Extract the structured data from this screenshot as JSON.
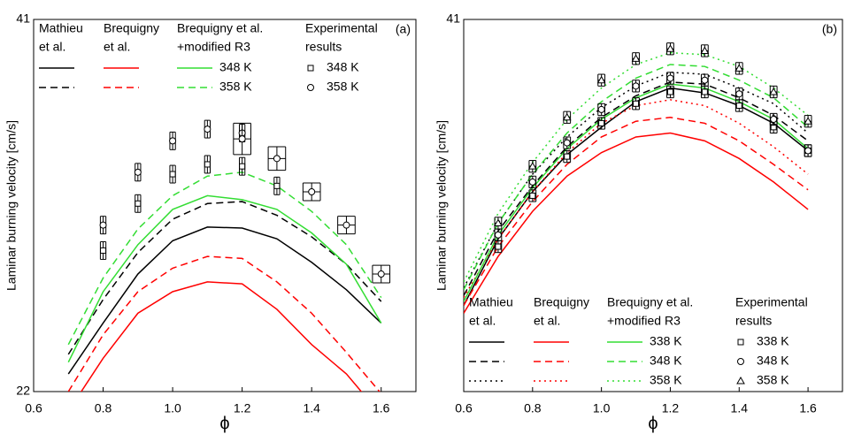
{
  "chart_data": [
    {
      "type": "line",
      "label": "(a)",
      "xlabel": "ϕ",
      "ylabel": "Laminar burning velocity [cm/s]",
      "xlim": [
        0.6,
        1.7
      ],
      "ylim": [
        22,
        41
      ],
      "xticks": [
        0.6,
        0.8,
        {
          "value": 1,
          "label": "1.0"
        },
        1.2,
        1.4,
        1.6
      ],
      "yticks": [
        22,
        41
      ],
      "legend": "upper left",
      "x": [
        0.7,
        0.8,
        0.9,
        1.0,
        1.1,
        1.2,
        1.3,
        1.4,
        1.5,
        1.6
      ],
      "groups": [
        {
          "name": [
            "Mathieu",
            "et al."
          ],
          "series": [
            {
              "color": "#000000",
              "dash": "solid",
              "values": [
                22.9,
                25.5,
                28.0,
                29.7,
                30.4,
                30.35,
                29.8,
                28.6,
                27.2,
                25.5
              ]
            },
            {
              "color": "#000000",
              "dash": "dashed",
              "values": [
                23.9,
                26.7,
                29.1,
                30.8,
                31.6,
                31.7,
                31.0,
                29.9,
                28.5,
                26.6
              ]
            }
          ]
        },
        {
          "name": [
            "Brequigny",
            "et al."
          ],
          "series": [
            {
              "color": "#ff0000",
              "dash": "solid",
              "values": [
                21.0,
                23.7,
                26.0,
                27.1,
                27.6,
                27.5,
                26.2,
                24.4,
                22.9,
                20.8
              ]
            },
            {
              "color": "#ff0000",
              "dash": "dashed",
              "values": [
                22.0,
                24.9,
                27.1,
                28.3,
                28.9,
                28.8,
                27.6,
                26.0,
                24.0,
                21.9
              ]
            }
          ]
        },
        {
          "name": [
            "Brequigny et al.",
            "+modified R3"
          ],
          "series": [
            {
              "name": "348 K",
              "color": "#33dd33",
              "dash": "solid",
              "values": [
                23.5,
                27.1,
                29.5,
                31.3,
                32.0,
                31.8,
                31.3,
                30.1,
                28.5,
                25.5
              ]
            },
            {
              "name": "358 K",
              "color": "#33dd33",
              "dash": "dashed",
              "values": [
                24.4,
                27.8,
                30.3,
                32.0,
                33.0,
                33.2,
                32.5,
                31.2,
                29.5,
                26.8
              ]
            }
          ]
        },
        {
          "name": [
            "Experimental",
            "results"
          ],
          "series": [
            {
              "name": "348 K",
              "color": "#000000",
              "marker": "square",
              "x": [
                0.8,
                0.9,
                1.0,
                1.1,
                1.2,
                1.3
              ],
              "values": [
                29.2,
                31.6,
                33.1,
                33.6,
                33.5,
                32.5
              ],
              "y_error": 0.45,
              "x_error": 0.008
            },
            {
              "name": "358 K",
              "color": "#000000",
              "marker": "circle",
              "x": [
                0.8,
                0.9,
                1.0,
                1.1,
                1.2,
                1.2,
                1.3,
                1.4,
                1.5,
                1.6
              ],
              "values": [
                30.5,
                33.2,
                34.8,
                35.4,
                35.2,
                34.9,
                33.9,
                32.2,
                30.5,
                28.0
              ],
              "y_error": [
                0.45,
                0.45,
                0.45,
                0.45,
                0.45,
                0.8,
                0.6,
                0.45,
                0.45,
                0.45
              ],
              "x_error": [
                0.008,
                0.008,
                0.008,
                0.008,
                0.008,
                0.025,
                0.025,
                0.025,
                0.025,
                0.025
              ]
            }
          ]
        }
      ]
    },
    {
      "type": "line",
      "label": "(b)",
      "xlabel": "ϕ",
      "ylabel": "Laminar burning velocity [cm/s]",
      "xlim": [
        0.6,
        1.7
      ],
      "ylim": [
        22,
        41
      ],
      "xticks": [
        0.6,
        0.8,
        {
          "value": 1,
          "label": "1.0"
        },
        1.2,
        1.4,
        1.6
      ],
      "yticks": [
        41
      ],
      "legend": "lower center",
      "x": [
        0.6,
        0.7,
        0.8,
        0.9,
        1.0,
        1.1,
        1.2,
        1.3,
        1.4,
        1.5,
        1.6
      ],
      "groups": [
        {
          "name": [
            "Mathieu",
            "et al."
          ],
          "series": [
            {
              "color": "#000000",
              "dash": "solid",
              "values": [
                26.4,
                29.8,
                32.2,
                34.1,
                35.5,
                36.8,
                37.5,
                37.25,
                36.6,
                35.7,
                34.3
              ]
            },
            {
              "color": "#000000",
              "dash": "dashed",
              "values": [
                26.9,
                30.2,
                32.5,
                34.5,
                36.0,
                37.1,
                37.8,
                37.7,
                37.0,
                36.1,
                34.8
              ]
            },
            {
              "color": "#000000",
              "dash": "dotted",
              "values": [
                27.3,
                30.6,
                33.1,
                35.0,
                36.5,
                37.6,
                38.3,
                38.2,
                37.5,
                36.7,
                35.2
              ]
            }
          ]
        },
        {
          "name": [
            "Brequigny",
            "et al."
          ],
          "series": [
            {
              "color": "#ff0000",
              "dash": "solid",
              "values": [
                26.0,
                28.9,
                31.2,
                33.0,
                34.2,
                35.0,
                35.2,
                34.8,
                33.9,
                32.7,
                31.3
              ]
            },
            {
              "color": "#ff0000",
              "dash": "dashed",
              "values": [
                26.4,
                29.4,
                31.7,
                33.6,
                35.0,
                35.8,
                36.0,
                35.7,
                34.8,
                33.6,
                32.3
              ]
            },
            {
              "color": "#ff0000",
              "dash": "dotted",
              "values": [
                26.8,
                29.8,
                32.2,
                34.2,
                35.7,
                36.6,
                36.9,
                36.6,
                35.7,
                34.5,
                33.1
              ]
            }
          ]
        },
        {
          "name": [
            "Brequigny et al.",
            "+modified R3"
          ],
          "series": [
            {
              "name": "338 K",
              "color": "#33dd33",
              "dash": "solid",
              "values": [
                26.6,
                30.0,
                32.4,
                34.4,
                35.9,
                37.0,
                37.7,
                37.5,
                36.8,
                35.9,
                34.4
              ]
            },
            {
              "name": "348 K",
              "color": "#33dd33",
              "dash": "dashed",
              "values": [
                27.2,
                30.6,
                33.1,
                35.2,
                36.8,
                38.0,
                38.7,
                38.6,
                37.9,
                37.0,
                35.5
              ]
            },
            {
              "name": "358 K",
              "color": "#33dd33",
              "dash": "dotted",
              "values": [
                27.6,
                31.1,
                33.7,
                35.9,
                37.5,
                38.7,
                39.3,
                39.2,
                38.6,
                37.5,
                36.1
              ]
            }
          ]
        },
        {
          "name": [
            "Experimental",
            "results"
          ],
          "series": [
            {
              "name": "338 K",
              "color": "#000000",
              "marker": "square",
              "x": [
                0.7,
                0.8,
                0.9,
                1.0,
                1.1,
                1.2,
                1.3,
                1.4,
                1.5,
                1.6
              ],
              "values": [
                29.4,
                32.0,
                34.0,
                35.7,
                36.7,
                37.3,
                37.3,
                36.6,
                35.5,
                34.3
              ],
              "y_error": 0.3,
              "x_error": 0.01
            },
            {
              "name": "348 K",
              "color": "#000000",
              "marker": "circle",
              "x": [
                0.7,
                0.8,
                0.9,
                1.0,
                1.1,
                1.2,
                1.3,
                1.4,
                1.5,
                1.6
              ],
              "values": [
                30.0,
                32.7,
                34.7,
                36.4,
                37.6,
                38.0,
                37.9,
                37.2,
                35.9,
                34.3
              ],
              "y_error": 0.3,
              "x_error": 0.01
            },
            {
              "name": "358 K",
              "color": "#000000",
              "marker": "triangle",
              "x": [
                0.7,
                0.8,
                0.9,
                1.0,
                1.1,
                1.2,
                1.3,
                1.4,
                1.5,
                1.6
              ],
              "values": [
                30.6,
                33.5,
                36.0,
                37.9,
                39.0,
                39.5,
                39.4,
                38.5,
                37.3,
                35.8
              ],
              "y_error": 0.3,
              "x_error": 0.01
            }
          ]
        }
      ]
    }
  ]
}
